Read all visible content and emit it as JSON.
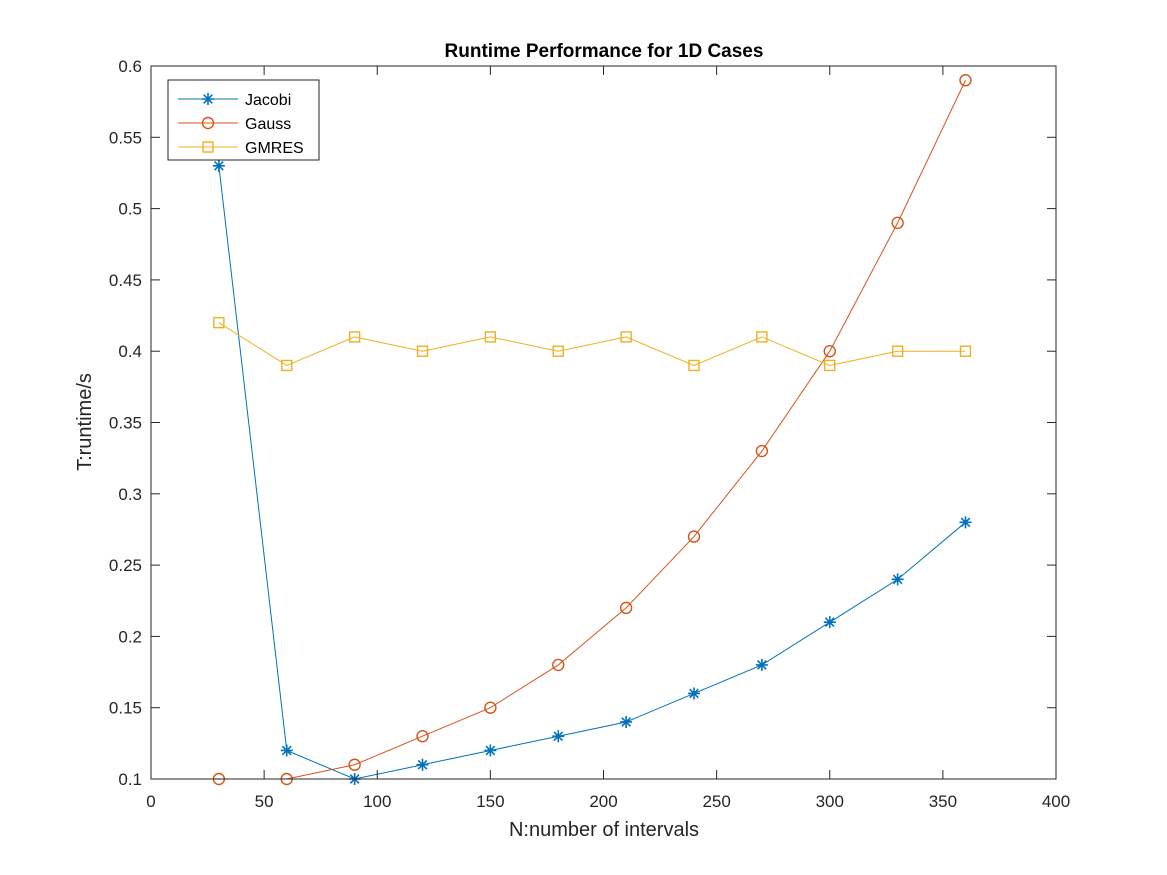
{
  "chart_data": {
    "type": "line",
    "title": "Runtime Performance for 1D Cases",
    "xlabel": "N:number of intervals",
    "ylabel": "T:runtime/s",
    "xlim": [
      0,
      400
    ],
    "ylim": [
      0.1,
      0.6
    ],
    "xticks": [
      0,
      50,
      100,
      150,
      200,
      250,
      300,
      350,
      400
    ],
    "xtick_labels": [
      "0",
      "50",
      "100",
      "150",
      "200",
      "250",
      "300",
      "350",
      "400"
    ],
    "yticks": [
      0.1,
      0.15,
      0.2,
      0.25,
      0.3,
      0.35,
      0.4,
      0.45,
      0.5,
      0.55,
      0.6
    ],
    "ytick_labels": [
      "0.1",
      "0.15",
      "0.2",
      "0.25",
      "0.3",
      "0.35",
      "0.4",
      "0.45",
      "0.5",
      "0.55",
      "0.6"
    ],
    "grid": false,
    "legend_position": "top-left",
    "x": [
      30,
      60,
      90,
      120,
      150,
      180,
      210,
      240,
      270,
      300,
      330,
      360
    ],
    "series": [
      {
        "name": "Jacobi",
        "marker": "asterisk",
        "color": "#0072BD",
        "values": [
          0.53,
          0.12,
          0.1,
          0.11,
          0.12,
          0.13,
          0.14,
          0.16,
          0.18,
          0.21,
          0.24,
          0.28
        ]
      },
      {
        "name": "Gauss",
        "marker": "circle",
        "color": "#D95319",
        "values": [
          0.1,
          0.1,
          0.11,
          0.13,
          0.15,
          0.18,
          0.22,
          0.27,
          0.33,
          0.4,
          0.49,
          0.59
        ]
      },
      {
        "name": "GMRES",
        "marker": "square",
        "color": "#EDB120",
        "values": [
          0.42,
          0.39,
          0.41,
          0.4,
          0.41,
          0.4,
          0.41,
          0.39,
          0.41,
          0.39,
          0.4,
          0.4
        ]
      }
    ]
  }
}
